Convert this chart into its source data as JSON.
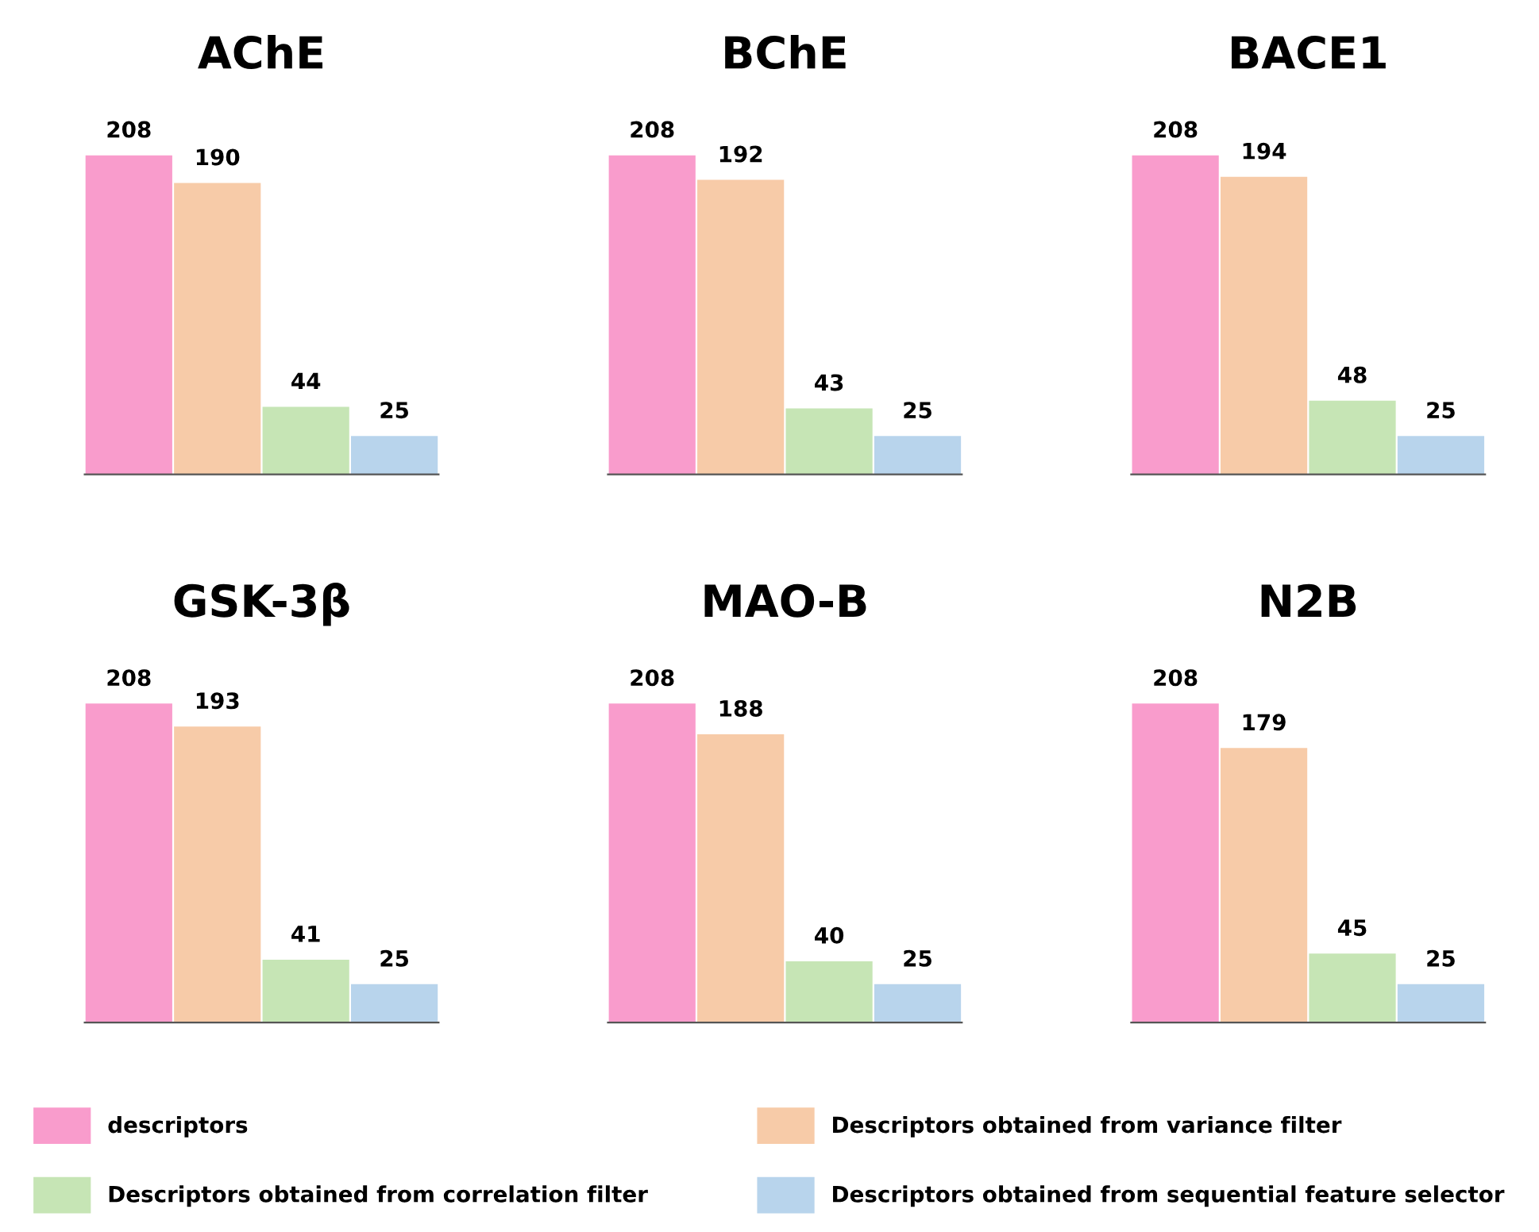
{
  "chart_data": [
    {
      "type": "bar",
      "title": "AChE",
      "categories": [
        null
      ],
      "data_labels": true,
      "legend": "bottom",
      "series": [
        {
          "name": "descriptors",
          "color": "#f99ccc",
          "values": [
            208
          ]
        },
        {
          "name": "Descriptors obtained from variance filter",
          "color": "#f7cba8",
          "values": [
            190
          ]
        },
        {
          "name": "Descriptors obtained from correlation filter",
          "color": "#c6e5b5",
          "values": [
            44
          ]
        },
        {
          "name": "Descriptors obtained from sequential feature selector",
          "color": "#b8d4ec",
          "values": [
            25
          ]
        }
      ]
    },
    {
      "type": "bar",
      "title": "BChE",
      "categories": [
        null
      ],
      "data_labels": true,
      "series": [
        {
          "color": "#f99ccc",
          "values": [
            208
          ]
        },
        {
          "color": "#f7cba8",
          "values": [
            192
          ]
        },
        {
          "color": "#c6e5b5",
          "values": [
            43
          ]
        },
        {
          "color": "#b8d4ec",
          "values": [
            25
          ]
        }
      ]
    },
    {
      "type": "bar",
      "title": "BACE1",
      "categories": [
        null
      ],
      "data_labels": true,
      "series": [
        {
          "color": "#f99ccc",
          "values": [
            208
          ]
        },
        {
          "color": "#f7cba8",
          "values": [
            194
          ]
        },
        {
          "color": "#c6e5b5",
          "values": [
            48
          ]
        },
        {
          "color": "#b8d4ec",
          "values": [
            25
          ]
        }
      ]
    },
    {
      "type": "bar",
      "title": "GSK-3β",
      "categories": [
        null
      ],
      "data_labels": true,
      "series": [
        {
          "color": "#f99ccc",
          "values": [
            208
          ]
        },
        {
          "color": "#f7cba8",
          "values": [
            193
          ]
        },
        {
          "color": "#c6e5b5",
          "values": [
            41
          ]
        },
        {
          "color": "#b8d4ec",
          "values": [
            25
          ]
        }
      ]
    },
    {
      "type": "bar",
      "title": "MAO-B",
      "categories": [
        null
      ],
      "data_labels": true,
      "series": [
        {
          "color": "#f99ccc",
          "values": [
            208
          ]
        },
        {
          "color": "#f7cba8",
          "values": [
            188
          ]
        },
        {
          "color": "#c6e5b5",
          "values": [
            40
          ]
        },
        {
          "color": "#b8d4ec",
          "values": [
            25
          ]
        }
      ]
    },
    {
      "type": "bar",
      "title": "N2B",
      "categories": [
        null
      ],
      "data_labels": true,
      "series": [
        {
          "color": "#f99ccc",
          "values": [
            208
          ]
        },
        {
          "color": "#f7cba8",
          "values": [
            179
          ]
        },
        {
          "color": "#c6e5b5",
          "values": [
            45
          ]
        },
        {
          "color": "#b8d4ec",
          "values": [
            25
          ]
        }
      ]
    }
  ]
}
